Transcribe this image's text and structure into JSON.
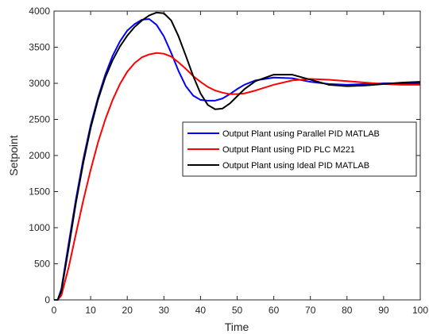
{
  "chart_data": {
    "type": "line",
    "title": "",
    "xlabel": "Time",
    "ylabel": "Setpoint",
    "xlim": [
      0,
      100
    ],
    "ylim": [
      0,
      4000
    ],
    "xticks": [
      0,
      10,
      20,
      30,
      40,
      50,
      60,
      70,
      80,
      90,
      100
    ],
    "yticks": [
      0,
      500,
      1000,
      1500,
      2000,
      2500,
      3000,
      3500,
      4000
    ],
    "grid": false,
    "legend_position": "right",
    "series": [
      {
        "name": "Output Plant using Parallel PID MATLAB",
        "color": "#0000ff",
        "x": [
          0,
          1,
          2,
          4,
          6,
          8,
          10,
          12,
          14,
          16,
          18,
          20,
          22,
          24,
          26,
          28,
          30,
          32,
          34,
          36,
          38,
          40,
          42,
          44,
          46,
          48,
          50,
          52,
          55,
          60,
          65,
          70,
          75,
          80,
          85,
          90,
          95,
          100
        ],
        "y": [
          0,
          0,
          150,
          780,
          1400,
          1950,
          2420,
          2800,
          3120,
          3380,
          3580,
          3730,
          3820,
          3880,
          3890,
          3810,
          3650,
          3420,
          3170,
          2960,
          2830,
          2770,
          2760,
          2760,
          2790,
          2850,
          2920,
          2980,
          3040,
          3080,
          3070,
          3020,
          2990,
          2980,
          2990,
          3000,
          3000,
          3000
        ]
      },
      {
        "name": "Output Plant using PID PLC M221",
        "color": "#ff0000",
        "x": [
          0,
          1,
          2,
          4,
          6,
          8,
          10,
          12,
          14,
          16,
          18,
          20,
          22,
          24,
          26,
          28,
          30,
          32,
          34,
          36,
          38,
          40,
          42,
          44,
          46,
          48,
          50,
          52,
          55,
          60,
          65,
          70,
          75,
          80,
          85,
          90,
          95,
          100
        ],
        "y": [
          0,
          0,
          60,
          450,
          920,
          1380,
          1800,
          2180,
          2500,
          2770,
          2990,
          3160,
          3280,
          3360,
          3400,
          3420,
          3410,
          3370,
          3290,
          3200,
          3100,
          3020,
          2950,
          2900,
          2870,
          2850,
          2850,
          2860,
          2900,
          2980,
          3040,
          3060,
          3050,
          3030,
          3010,
          2990,
          2980,
          2980
        ]
      },
      {
        "name": "Output Plant using Ideal PID MATLAB",
        "color": "#000000",
        "x": [
          0,
          1,
          2,
          4,
          6,
          8,
          10,
          12,
          14,
          16,
          18,
          20,
          22,
          24,
          26,
          28,
          30,
          32,
          34,
          36,
          38,
          40,
          42,
          44,
          46,
          48,
          50,
          52,
          55,
          60,
          65,
          70,
          75,
          80,
          85,
          90,
          95,
          100
        ],
        "y": [
          0,
          0,
          120,
          720,
          1350,
          1900,
          2380,
          2770,
          3080,
          3320,
          3510,
          3660,
          3780,
          3870,
          3940,
          3980,
          3970,
          3870,
          3650,
          3380,
          3100,
          2860,
          2700,
          2640,
          2650,
          2720,
          2820,
          2920,
          3030,
          3120,
          3120,
          3050,
          2980,
          2960,
          2970,
          2990,
          3010,
          3020
        ]
      }
    ]
  }
}
